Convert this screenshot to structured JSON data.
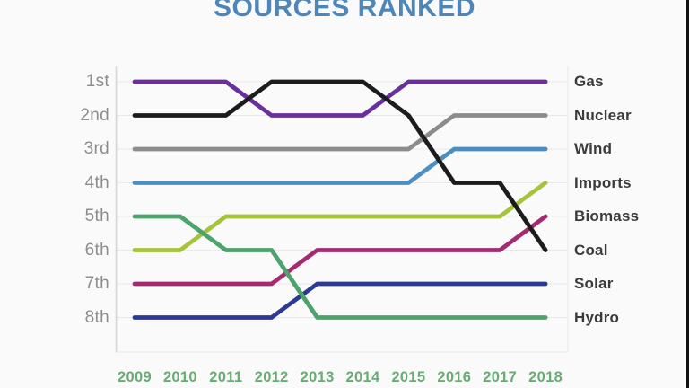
{
  "title": "SOURCES RANKED",
  "colors": {
    "background": "#fafafa",
    "title": "#4e86b8",
    "year_labels": "#69ac73",
    "rank_labels": "#8d8d8d",
    "series_labels": "#3b3b3b",
    "gridline": "#e8e8eb",
    "axis": "#d4d4d8",
    "right_edge_bar": "#111111"
  },
  "chart_data": {
    "type": "line",
    "subtype": "bump-chart-ranking",
    "title": "SOURCES RANKED",
    "x": [
      2009,
      2010,
      2011,
      2012,
      2013,
      2014,
      2015,
      2016,
      2017,
      2018
    ],
    "rank_axis": [
      "1st",
      "2nd",
      "3rd",
      "4th",
      "5th",
      "6th",
      "7th",
      "8th"
    ],
    "rank_1_at_top": true,
    "grid": true,
    "legend_position": "right-end-labels",
    "series": [
      {
        "name": "Gas",
        "color": "#6b2f9c",
        "ranks": [
          1,
          1,
          1,
          2,
          2,
          2,
          1,
          1,
          1,
          1
        ]
      },
      {
        "name": "Nuclear",
        "color": "#8c8c8c",
        "ranks": [
          3,
          3,
          3,
          3,
          3,
          3,
          3,
          2,
          2,
          2
        ]
      },
      {
        "name": "Wind",
        "color": "#4a8ec2",
        "ranks": [
          4,
          4,
          4,
          4,
          4,
          4,
          4,
          3,
          3,
          3
        ]
      },
      {
        "name": "Imports",
        "color": "#a5c43c",
        "ranks": [
          6,
          6,
          5,
          5,
          5,
          5,
          5,
          5,
          5,
          4
        ]
      },
      {
        "name": "Biomass",
        "color": "#a62a70",
        "ranks": [
          7,
          7,
          7,
          7,
          6,
          6,
          6,
          6,
          6,
          5
        ]
      },
      {
        "name": "Coal",
        "color": "#1c1c1c",
        "ranks": [
          2,
          2,
          2,
          1,
          1,
          1,
          2,
          4,
          4,
          6
        ]
      },
      {
        "name": "Solar",
        "color": "#2b3a94",
        "ranks": [
          8,
          8,
          8,
          8,
          7,
          7,
          7,
          7,
          7,
          7
        ]
      },
      {
        "name": "Hydro",
        "color": "#4ca36b",
        "ranks": [
          5,
          5,
          6,
          6,
          8,
          8,
          8,
          8,
          8,
          8
        ]
      }
    ],
    "draw_order": [
      "Nuclear",
      "Wind",
      "Imports",
      "Biomass",
      "Solar",
      "Hydro",
      "Gas",
      "Coal"
    ]
  }
}
